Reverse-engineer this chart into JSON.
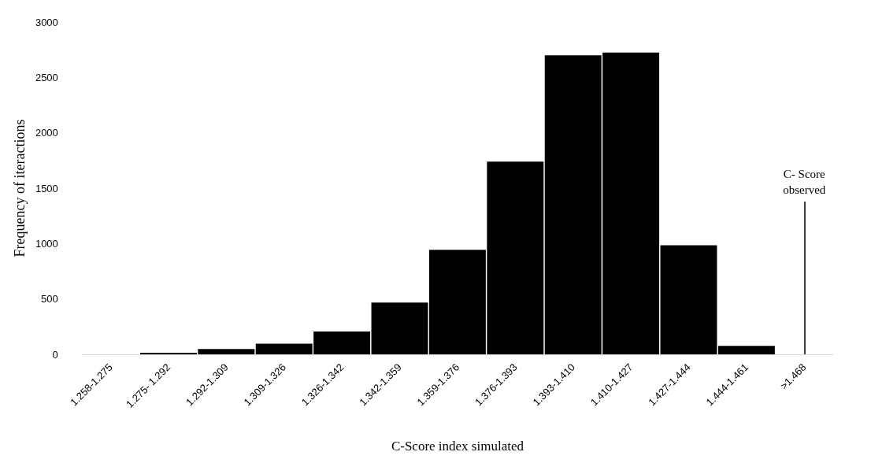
{
  "chart_data": {
    "type": "bar",
    "xlabel": "C-Score index simulated",
    "ylabel": "Frequency of iteractions",
    "categories": [
      "1.258-1.275",
      "1.275- 1.292",
      "1.292-1.309",
      "1.309-1.326",
      "1.326-1.342",
      "1.342-1.359",
      "1.359-1.376",
      "1.376-1.393",
      "1.393-1.410",
      "1.410-1.427",
      "1.427-1.444",
      "1.444-1.461",
      ">1.468"
    ],
    "values": [
      0,
      14,
      48,
      96,
      206,
      468,
      943,
      1740,
      2700,
      2725,
      985,
      76,
      0
    ],
    "color": "#000000",
    "ylim": [
      0,
      3000
    ],
    "yticks": [
      0,
      500,
      1000,
      1500,
      2000,
      2500,
      3000
    ],
    "grid": false,
    "ref_lines": [
      {
        "axis": "x",
        "value": ">1.468",
        "label": "C- Score\nobserved",
        "color": "#000000"
      }
    ]
  }
}
